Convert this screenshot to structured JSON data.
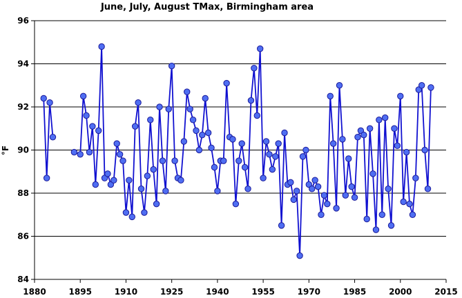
{
  "chart_data": {
    "type": "line",
    "title": "June, July, August TMax, Birmingham area",
    "xlabel": "",
    "ylabel": "°F",
    "xlim": [
      1880,
      2015
    ],
    "ylim": [
      84,
      96
    ],
    "x_ticks": [
      1880,
      1895,
      1910,
      1925,
      1940,
      1955,
      1970,
      1985,
      2000,
      2015
    ],
    "y_ticks": [
      84,
      86,
      88,
      90,
      92,
      94,
      96
    ],
    "grid": "horizontal",
    "legend": "none",
    "line_color": "#1010d0",
    "marker_color": "#4f6ef2",
    "series": [
      {
        "segments": [
          [
            [
              1883,
              92.4
            ],
            [
              1884,
              88.7
            ],
            [
              1885,
              92.2
            ],
            [
              1886,
              90.6
            ]
          ],
          [
            [
              1893,
              89.9
            ],
            [
              1895,
              89.8
            ],
            [
              1896,
              92.5
            ],
            [
              1897,
              91.6
            ],
            [
              1898,
              89.9
            ],
            [
              1899,
              91.1
            ],
            [
              1900,
              88.4
            ],
            [
              1901,
              90.9
            ],
            [
              1902,
              94.8
            ],
            [
              1903,
              88.7
            ],
            [
              1904,
              88.9
            ],
            [
              1905,
              88.4
            ],
            [
              1906,
              88.6
            ],
            [
              1907,
              90.3
            ],
            [
              1908,
              89.8
            ],
            [
              1909,
              89.5
            ],
            [
              1910,
              87.1
            ],
            [
              1911,
              88.6
            ],
            [
              1912,
              86.9
            ],
            [
              1913,
              91.1
            ],
            [
              1914,
              92.2
            ],
            [
              1915,
              88.2
            ],
            [
              1916,
              87.1
            ],
            [
              1917,
              88.8
            ],
            [
              1918,
              91.4
            ],
            [
              1919,
              89.1
            ],
            [
              1920,
              87.5
            ],
            [
              1921,
              92.0
            ],
            [
              1922,
              89.5
            ],
            [
              1923,
              88.1
            ],
            [
              1924,
              91.9
            ],
            [
              1925,
              93.9
            ],
            [
              1926,
              89.5
            ],
            [
              1927,
              88.7
            ],
            [
              1928,
              88.6
            ],
            [
              1929,
              90.4
            ],
            [
              1930,
              92.7
            ],
            [
              1931,
              91.9
            ],
            [
              1932,
              91.4
            ],
            [
              1933,
              90.9
            ],
            [
              1934,
              90.0
            ],
            [
              1935,
              90.7
            ],
            [
              1936,
              92.4
            ],
            [
              1937,
              90.8
            ],
            [
              1938,
              90.1
            ],
            [
              1939,
              89.2
            ],
            [
              1940,
              88.1
            ],
            [
              1941,
              89.5
            ],
            [
              1942,
              89.5
            ],
            [
              1943,
              93.1
            ],
            [
              1944,
              90.6
            ],
            [
              1945,
              90.5
            ],
            [
              1946,
              87.5
            ],
            [
              1947,
              89.5
            ],
            [
              1948,
              90.3
            ],
            [
              1949,
              89.2
            ],
            [
              1950,
              88.2
            ],
            [
              1951,
              92.3
            ],
            [
              1952,
              93.8
            ],
            [
              1953,
              91.6
            ],
            [
              1954,
              94.7
            ],
            [
              1955,
              88.7
            ],
            [
              1956,
              90.4
            ],
            [
              1957,
              89.8
            ],
            [
              1958,
              89.1
            ],
            [
              1959,
              89.7
            ],
            [
              1960,
              90.3
            ],
            [
              1961,
              86.5
            ],
            [
              1962,
              90.8
            ],
            [
              1963,
              88.4
            ],
            [
              1964,
              88.5
            ],
            [
              1965,
              87.7
            ],
            [
              1966,
              88.1
            ],
            [
              1967,
              85.1
            ],
            [
              1968,
              89.7
            ],
            [
              1969,
              90.0
            ],
            [
              1970,
              88.4
            ],
            [
              1971,
              88.2
            ],
            [
              1972,
              88.6
            ],
            [
              1973,
              88.3
            ],
            [
              1974,
              87.0
            ],
            [
              1975,
              87.9
            ],
            [
              1976,
              87.5
            ],
            [
              1977,
              92.5
            ],
            [
              1978,
              90.3
            ],
            [
              1979,
              87.3
            ],
            [
              1980,
              93.0
            ],
            [
              1981,
              90.5
            ],
            [
              1982,
              87.9
            ],
            [
              1983,
              89.6
            ],
            [
              1984,
              88.3
            ],
            [
              1985,
              87.8
            ],
            [
              1986,
              90.6
            ],
            [
              1987,
              90.9
            ],
            [
              1988,
              90.7
            ],
            [
              1989,
              86.8
            ],
            [
              1990,
              91.0
            ],
            [
              1991,
              88.9
            ],
            [
              1992,
              86.3
            ],
            [
              1993,
              91.4
            ],
            [
              1994,
              87.0
            ],
            [
              1995,
              91.5
            ],
            [
              1996,
              88.2
            ],
            [
              1997,
              86.5
            ],
            [
              1998,
              91.0
            ],
            [
              1999,
              90.2
            ],
            [
              2000,
              92.5
            ],
            [
              2001,
              87.6
            ],
            [
              2002,
              89.9
            ],
            [
              2003,
              87.5
            ],
            [
              2004,
              87.0
            ],
            [
              2005,
              88.7
            ],
            [
              2006,
              92.8
            ],
            [
              2007,
              93.0
            ],
            [
              2008,
              90.0
            ],
            [
              2009,
              88.2
            ],
            [
              2010,
              92.9
            ]
          ]
        ]
      }
    ]
  }
}
